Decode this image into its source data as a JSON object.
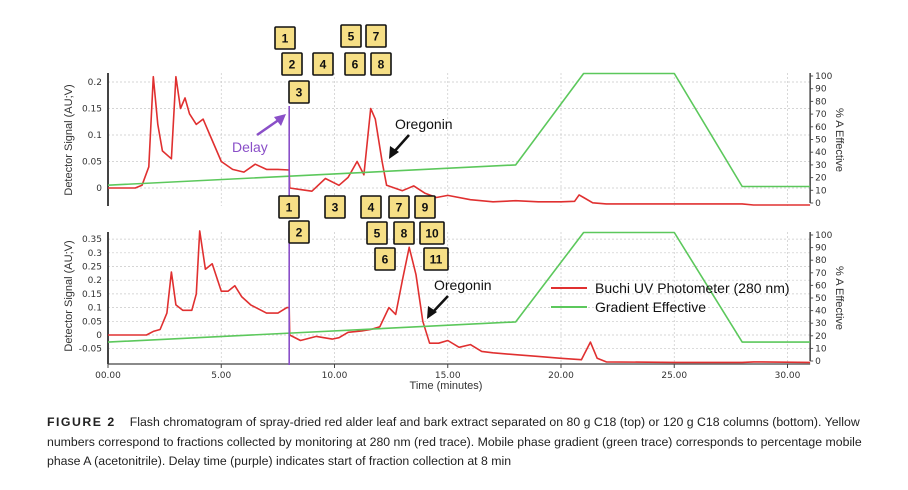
{
  "chart_data": [
    {
      "type": "line",
      "panel": "top",
      "xlabel": "",
      "ylabel": "Detector Signal (AU;V)",
      "y2label": "% A Effective",
      "xlim": [
        0,
        31
      ],
      "ylim": [
        -0.03,
        0.2
      ],
      "y2lim": [
        0,
        100
      ],
      "xticks": [
        "00.00",
        "5.00",
        "10.00",
        "15.00",
        "20.00",
        "25.00",
        "30.00"
      ],
      "yticks": [
        "0",
        "0.05",
        "0.1",
        "0.15",
        "0.2"
      ],
      "y2ticks": [
        "0",
        "10",
        "20",
        "30",
        "40",
        "50",
        "60",
        "70",
        "80",
        "90",
        "100"
      ],
      "grid": true,
      "series": [
        {
          "name": "Buchi UV Photometer (280 nm)",
          "color": "#e03030",
          "axis": "left",
          "x": [
            0,
            1.2,
            1.5,
            1.8,
            2.0,
            2.2,
            2.4,
            2.8,
            3.0,
            3.2,
            3.4,
            3.6,
            3.9,
            4.2,
            4.5,
            5.0,
            5.5,
            6.0,
            6.5,
            7.0,
            7.5,
            8.0,
            8.02,
            8.5,
            9.0,
            9.6,
            10.2,
            10.6,
            11.0,
            11.3,
            11.6,
            11.8,
            12.1,
            12.3,
            13.0,
            13.5,
            14.0,
            14.5,
            15.0,
            16.0,
            17.0,
            18.0,
            19.0,
            20.0,
            20.6,
            20.8,
            21.0,
            21.4,
            22.0,
            25.0,
            28.0,
            28.5,
            31.0
          ],
          "y": [
            0,
            0,
            0.005,
            0.04,
            0.21,
            0.12,
            0.07,
            0.055,
            0.21,
            0.15,
            0.17,
            0.14,
            0.12,
            0.13,
            0.1,
            0.05,
            0.035,
            0.03,
            0.045,
            0.035,
            0.035,
            0.034,
            0,
            -0.003,
            -0.006,
            0.018,
            0.005,
            0.02,
            0.05,
            0.025,
            0.15,
            0.13,
            0.05,
            0.005,
            -0.005,
            0.004,
            -0.01,
            -0.018,
            -0.014,
            -0.022,
            -0.026,
            -0.024,
            -0.026,
            -0.026,
            -0.025,
            -0.013,
            -0.018,
            -0.028,
            -0.03,
            -0.03,
            -0.03,
            -0.032,
            -0.032
          ]
        },
        {
          "name": "Gradient Effective",
          "color": "#5cc85c",
          "axis": "right",
          "x": [
            0,
            18,
            21,
            25,
            28,
            31
          ],
          "y": [
            14,
            30,
            102,
            102,
            13,
            13
          ]
        }
      ],
      "delay": {
        "x": 8,
        "label": "Delay",
        "color": "#8a4fc8"
      },
      "annotation": "Oregonin",
      "fractions_above": [
        "1",
        "2",
        "3",
        "4",
        "5",
        "6",
        "7",
        "8"
      ],
      "fractions_below": [
        "1",
        "3",
        "4",
        "7",
        "9"
      ]
    },
    {
      "type": "line",
      "panel": "bottom",
      "xlabel": "Time (minutes)",
      "ylabel": "Detector Signal (AU;V)",
      "y2label": "% A Effective",
      "xlim": [
        0,
        31
      ],
      "ylim": [
        -0.1,
        0.35
      ],
      "y2lim": [
        0,
        100
      ],
      "xticks": [
        "00.00",
        "5.00",
        "10.00",
        "15.00",
        "20.00",
        "25.00",
        "30.00"
      ],
      "yticks": [
        "-0.05",
        "0",
        "0.05",
        "0.1",
        "0.15",
        "0.2",
        "0.25",
        "0.3",
        "0.35"
      ],
      "y2ticks": [
        "0",
        "10",
        "20",
        "30",
        "40",
        "50",
        "60",
        "70",
        "80",
        "90",
        "100"
      ],
      "grid": true,
      "series": [
        {
          "name": "Buchi UV Photometer (280 nm)",
          "color": "#e03030",
          "axis": "left",
          "x": [
            0,
            1.7,
            2.0,
            2.3,
            2.6,
            2.8,
            3.0,
            3.3,
            3.7,
            3.9,
            4.05,
            4.3,
            4.6,
            5.0,
            5.3,
            5.6,
            5.9,
            6.3,
            7.0,
            7.5,
            7.9,
            8.0,
            8.02,
            8.5,
            9.2,
            9.9,
            10.2,
            10.6,
            11.2,
            11.6,
            12.0,
            12.4,
            12.7,
            13.0,
            13.3,
            13.6,
            13.9,
            14.2,
            14.6,
            15.0,
            15.5,
            16.0,
            16.5,
            17.0,
            18.0,
            19.0,
            20.0,
            20.9,
            21.3,
            21.6,
            22.0,
            25.0,
            28.0,
            28.5,
            31.0
          ],
          "y": [
            0,
            0,
            0.013,
            0.02,
            0.08,
            0.23,
            0.11,
            0.09,
            0.09,
            0.15,
            0.38,
            0.24,
            0.26,
            0.16,
            0.16,
            0.18,
            0.14,
            0.11,
            0.08,
            0.08,
            0.1,
            0.1,
            0,
            -0.02,
            -0.005,
            -0.015,
            -0.01,
            0.01,
            0.015,
            0.02,
            0.03,
            0.1,
            0.075,
            0.2,
            0.32,
            0.22,
            0.05,
            -0.03,
            -0.03,
            -0.02,
            -0.045,
            -0.035,
            -0.06,
            -0.065,
            -0.072,
            -0.078,
            -0.085,
            -0.09,
            -0.026,
            -0.085,
            -0.098,
            -0.1,
            -0.1,
            -0.098,
            -0.1
          ]
        },
        {
          "name": "Gradient Effective",
          "color": "#5cc85c",
          "axis": "right",
          "x": [
            0,
            18,
            21,
            25,
            28,
            31
          ],
          "y": [
            15,
            31,
            102,
            102,
            15,
            15
          ]
        }
      ],
      "delay": {
        "x": 8,
        "color": "#8a4fc8"
      },
      "annotation": "Oregonin",
      "fractions_above": [
        "2",
        "5",
        "8",
        "10",
        "6",
        "11"
      ],
      "legend": {
        "placement": "center-right",
        "entries": [
          "Buchi UV Photometer (280 nm)",
          "Gradient Effective"
        ]
      }
    }
  ],
  "caption": {
    "label": "FIGURE 2",
    "text": "Flash chromatogram of spray-dried red alder leaf and bark extract separated on 80 g C18 (top) or 120 g C18 columns (bottom). Yellow numbers correspond to fractions collected by monitoring at 280 nm (red trace). Mobile phase gradient (green trace) corresponds to percentage mobile phase A (acetonitrile). Delay time (purple) indicates start of fraction collection at 8 min"
  }
}
